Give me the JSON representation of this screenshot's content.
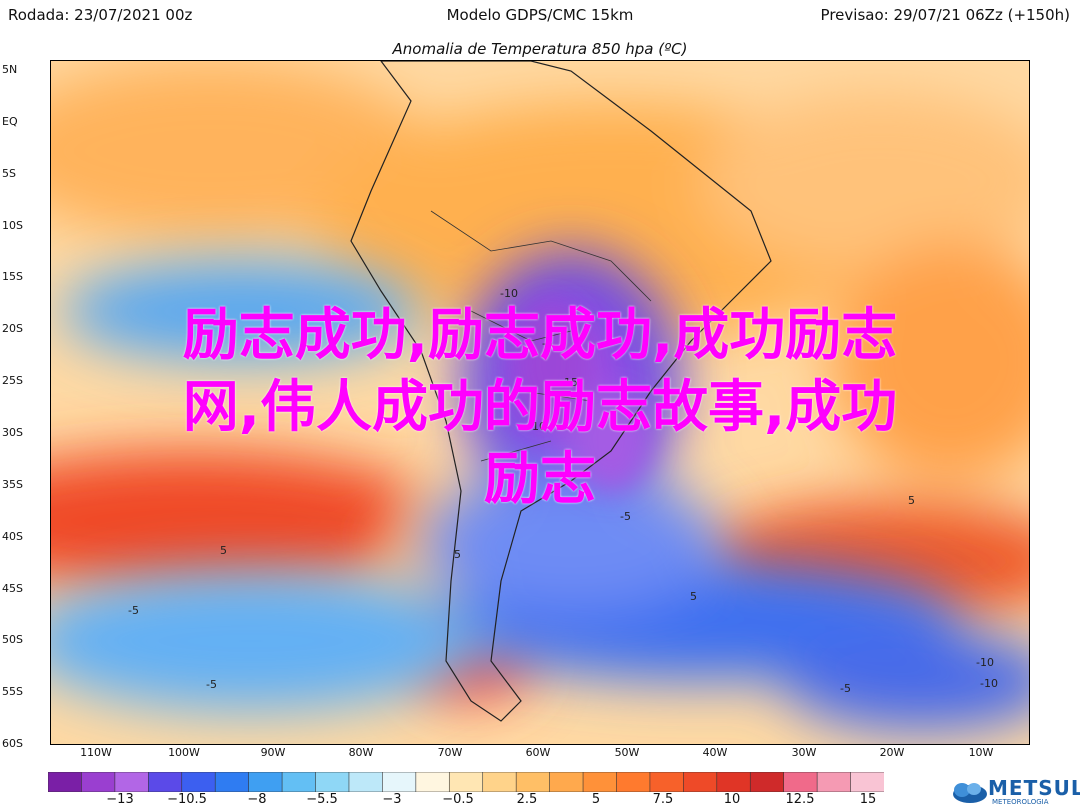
{
  "header": {
    "left": "Rodada: 23/07/2021 00z",
    "center": "Modelo GDPS/CMC 15km",
    "right": "Previsao: 29/07/21 06Zz (+150h)"
  },
  "map": {
    "title": "Anomalia de Temperatura 850 hpa (ºC)",
    "lat_labels": [
      "5N",
      "EQ",
      "5S",
      "10S",
      "15S",
      "20S",
      "25S",
      "30S",
      "35S",
      "40S",
      "45S",
      "50S",
      "55S",
      "60S"
    ],
    "lon_labels": [
      "110W",
      "100W",
      "90W",
      "80W",
      "70W",
      "60W",
      "50W",
      "40W",
      "30W",
      "20W",
      "10W"
    ],
    "contour_labels": [
      "-10",
      "-15",
      "-5",
      "-10",
      "-5",
      "5",
      "5",
      "5",
      "-5",
      "-5",
      "-10",
      "-10",
      "-5",
      "5"
    ]
  },
  "overlay": {
    "line1": "励志成功,励志成功,成功励志",
    "line2": "网,伟人成功的励志故事,成功",
    "line3": "励志"
  },
  "colorbar": {
    "ticks": [
      "−13",
      "−10.5",
      "−8",
      "−5.5",
      "−3",
      "−0.5",
      "2.5",
      "5",
      "7.5",
      "10",
      "12.5",
      "15"
    ],
    "colors": [
      "#7a1fa6",
      "#9a3fd0",
      "#b266e6",
      "#5b4ae8",
      "#3c5ff0",
      "#2f7cf2",
      "#3f9ff2",
      "#63bff4",
      "#8fd7f6",
      "#bde8f9",
      "#e6f6fb",
      "#fff6e0",
      "#ffe6b3",
      "#ffd38a",
      "#ffbf66",
      "#ffa94d",
      "#ff9139",
      "#ff7a2e",
      "#f7612a",
      "#ee4a28",
      "#e03526",
      "#cf2a2a",
      "#f06a8a",
      "#f59ab3",
      "#f9c4d4"
    ]
  },
  "brand": {
    "name": "METSUL",
    "sub": "METEOROLOGIA"
  }
}
